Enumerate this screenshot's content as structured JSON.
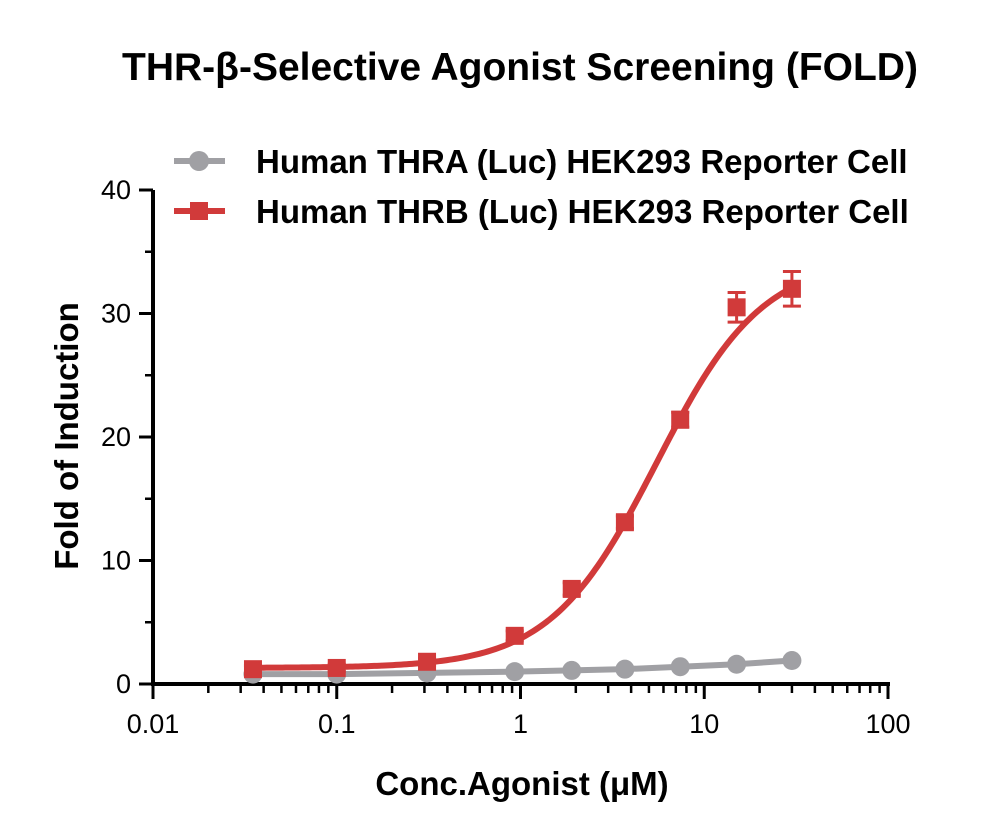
{
  "chart_data": {
    "type": "line",
    "title": "THR-β-Selective Agonist Screening (FOLD)",
    "xlabel": "Conc.Agonist (μM)",
    "ylabel": "Fold of Induction",
    "xscale": "log",
    "xlim": [
      0.01,
      100
    ],
    "ylim": [
      0,
      40
    ],
    "x_ticks": [
      "0.01",
      "0.1",
      "1",
      "10",
      "100"
    ],
    "y_ticks": [
      "0",
      "10",
      "20",
      "30",
      "40"
    ],
    "grid": false,
    "legend_position": "top",
    "series": [
      {
        "name": "Human THRA (Luc) HEK293 Reporter Cell",
        "color": "#a0a0a4",
        "marker": "circle",
        "x": [
          0.035,
          0.1,
          0.31,
          0.93,
          1.9,
          3.7,
          7.4,
          15,
          30
        ],
        "y": [
          0.8,
          0.8,
          0.9,
          1.0,
          1.1,
          1.2,
          1.4,
          1.6,
          1.9
        ]
      },
      {
        "name": "Human THRB (Luc) HEK293 Reporter Cell",
        "color": "#d13a3a",
        "marker": "square",
        "x": [
          0.035,
          0.1,
          0.31,
          0.93,
          1.9,
          3.7,
          7.4,
          15,
          30
        ],
        "y": [
          1.2,
          1.3,
          1.8,
          3.9,
          7.7,
          13.1,
          21.4,
          30.5,
          32.0
        ],
        "error": [
          0.3,
          0.3,
          0.3,
          0.4,
          0.5,
          0.5,
          0.6,
          1.2,
          1.4
        ],
        "fit": {
          "bottom": 1.3,
          "top": 34.5,
          "ec50": 5.5,
          "hill": 1.5
        }
      }
    ]
  }
}
